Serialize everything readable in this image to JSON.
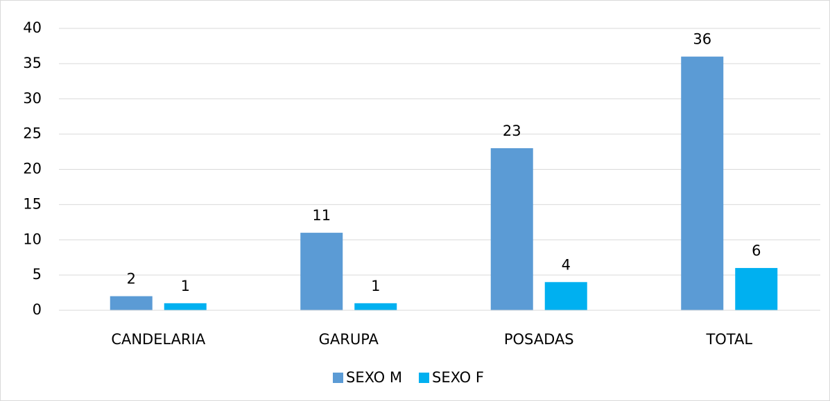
{
  "chart_data": {
    "type": "bar",
    "categories": [
      "CANDELARIA",
      "GARUPA",
      "POSADAS",
      "TOTAL"
    ],
    "series": [
      {
        "name": "SEXO M",
        "color": "#5b9bd5",
        "values": [
          2,
          11,
          23,
          36
        ]
      },
      {
        "name": "SEXO F",
        "color": "#00b0f0",
        "values": [
          1,
          1,
          4,
          6
        ]
      }
    ],
    "ylim": [
      0,
      40
    ],
    "yticks": [
      0,
      5,
      10,
      15,
      20,
      25,
      30,
      35,
      40
    ],
    "grid": true,
    "legend": "bottom"
  }
}
